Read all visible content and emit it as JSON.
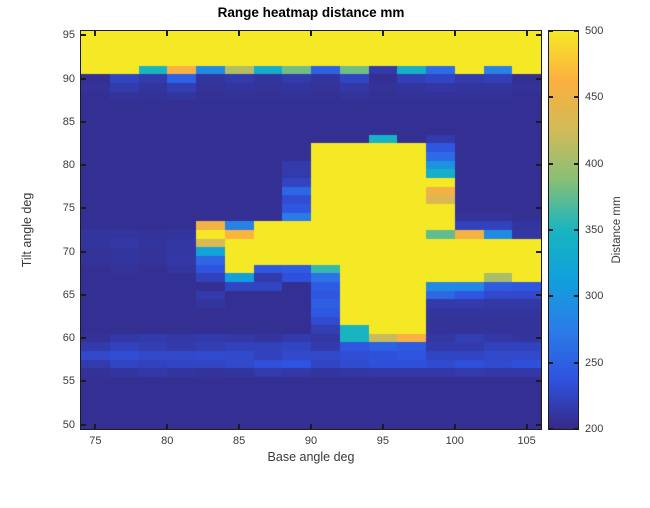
{
  "title": "Range heatmap distance mm",
  "x_axis": {
    "label": "Base angle deg",
    "ticks": [
      75,
      80,
      85,
      90,
      95,
      100,
      105
    ]
  },
  "y_axis": {
    "label": "Tilt angle deg",
    "ticks": [
      50,
      55,
      60,
      65,
      70,
      75,
      80,
      85,
      90,
      95
    ]
  },
  "colorbar": {
    "label": "Distance mm",
    "ticks": [
      200,
      250,
      300,
      350,
      400,
      450,
      500
    ],
    "min": 200,
    "max": 500
  },
  "palette": {
    "name": "parula",
    "background": "#ffffff",
    "axis_color": "#1c1c1c",
    "label_color": "#3a3a3a",
    "anchors": [
      [
        0.0,
        "#352a87"
      ],
      [
        0.125,
        "#2f53e1"
      ],
      [
        0.25,
        "#2b7de8"
      ],
      [
        0.375,
        "#11a0dc"
      ],
      [
        0.5,
        "#18b5c0"
      ],
      [
        0.625,
        "#87bf77"
      ],
      [
        0.75,
        "#d1bb59"
      ],
      [
        0.875,
        "#fbb040"
      ],
      [
        1.0,
        "#f5e926"
      ]
    ]
  },
  "chart_data": {
    "type": "heatmap",
    "title": "Range heatmap distance mm",
    "xlabel": "Base angle deg",
    "ylabel": "Tilt angle deg",
    "colorbar_label": "Distance mm",
    "colormap": "parula",
    "x_range": [
      74,
      106
    ],
    "y_range": [
      49.5,
      95.5
    ],
    "color_range": [
      200,
      500
    ],
    "x_centers": [
      75,
      77,
      79,
      81,
      83,
      85,
      87,
      89,
      91,
      93,
      95,
      97,
      99,
      101,
      103,
      105
    ],
    "y_centers_top_to_bottom": [
      95,
      94,
      93,
      92,
      91,
      90,
      89,
      88,
      87,
      86,
      85,
      84,
      83,
      82,
      81,
      80,
      79,
      78,
      77,
      76,
      75,
      74,
      73,
      72,
      71,
      70,
      69,
      68,
      67,
      66,
      65,
      64,
      63,
      62,
      61,
      60,
      59,
      58,
      57,
      56,
      55,
      54,
      53,
      52,
      51,
      50
    ],
    "values": [
      [
        500,
        500,
        500,
        500,
        500,
        500,
        500,
        500,
        500,
        500,
        500,
        500,
        500,
        500,
        500,
        500
      ],
      [
        500,
        500,
        500,
        500,
        500,
        500,
        500,
        500,
        500,
        500,
        500,
        500,
        500,
        500,
        500,
        500
      ],
      [
        500,
        500,
        500,
        500,
        500,
        500,
        500,
        500,
        500,
        500,
        500,
        500,
        500,
        500,
        500,
        500
      ],
      [
        500,
        500,
        500,
        500,
        500,
        500,
        500,
        500,
        500,
        500,
        500,
        500,
        500,
        500,
        500,
        500
      ],
      [
        500,
        500,
        350,
        460,
        290,
        410,
        335,
        380,
        250,
        380,
        215,
        340,
        260,
        500,
        280,
        500
      ],
      [
        205,
        225,
        215,
        250,
        210,
        215,
        210,
        215,
        210,
        225,
        205,
        220,
        225,
        215,
        220,
        205
      ],
      [
        207,
        215,
        210,
        218,
        208,
        210,
        208,
        210,
        208,
        213,
        207,
        210,
        212,
        210,
        210,
        207
      ],
      [
        205,
        208,
        207,
        210,
        206,
        207,
        206,
        207,
        206,
        208,
        206,
        207,
        207,
        207,
        207,
        205
      ],
      [
        205,
        205,
        205,
        205,
        205,
        205,
        205,
        205,
        205,
        205,
        205,
        205,
        205,
        205,
        205,
        205
      ],
      [
        205,
        205,
        205,
        205,
        205,
        205,
        205,
        205,
        205,
        205,
        205,
        205,
        205,
        205,
        205,
        205
      ],
      [
        205,
        205,
        205,
        205,
        205,
        205,
        205,
        205,
        205,
        205,
        205,
        205,
        205,
        205,
        205,
        205
      ],
      [
        205,
        205,
        205,
        205,
        205,
        205,
        205,
        205,
        205,
        205,
        205,
        205,
        205,
        205,
        205,
        205
      ],
      [
        205,
        205,
        205,
        205,
        205,
        205,
        205,
        205,
        205,
        205,
        345,
        205,
        215,
        205,
        205,
        205
      ],
      [
        205,
        205,
        205,
        205,
        205,
        205,
        205,
        205,
        500,
        500,
        500,
        500,
        240,
        205,
        205,
        205
      ],
      [
        205,
        205,
        205,
        205,
        205,
        205,
        205,
        205,
        500,
        500,
        500,
        500,
        258,
        205,
        205,
        205
      ],
      [
        205,
        205,
        205,
        205,
        205,
        205,
        205,
        215,
        500,
        500,
        500,
        500,
        300,
        205,
        205,
        205
      ],
      [
        205,
        205,
        205,
        205,
        205,
        205,
        205,
        215,
        500,
        500,
        500,
        500,
        340,
        205,
        205,
        205
      ],
      [
        205,
        205,
        205,
        205,
        205,
        205,
        205,
        225,
        500,
        500,
        500,
        500,
        500,
        205,
        205,
        205
      ],
      [
        205,
        205,
        205,
        205,
        205,
        205,
        205,
        255,
        500,
        500,
        500,
        500,
        455,
        205,
        205,
        205
      ],
      [
        205,
        205,
        205,
        205,
        205,
        205,
        205,
        232,
        500,
        500,
        500,
        500,
        435,
        205,
        205,
        205
      ],
      [
        205,
        205,
        205,
        205,
        205,
        205,
        205,
        240,
        500,
        500,
        500,
        500,
        500,
        205,
        205,
        205
      ],
      [
        205,
        205,
        205,
        205,
        205,
        205,
        205,
        272,
        500,
        500,
        500,
        500,
        500,
        208,
        208,
        205
      ],
      [
        205,
        205,
        205,
        205,
        455,
        280,
        500,
        500,
        500,
        500,
        500,
        500,
        500,
        222,
        222,
        210
      ],
      [
        210,
        210,
        208,
        210,
        500,
        465,
        500,
        500,
        500,
        500,
        500,
        500,
        375,
        455,
        290,
        212
      ],
      [
        210,
        213,
        210,
        212,
        430,
        500,
        500,
        500,
        500,
        500,
        500,
        500,
        500,
        500,
        500,
        500
      ],
      [
        208,
        210,
        208,
        212,
        320,
        500,
        500,
        500,
        500,
        500,
        500,
        500,
        500,
        500,
        500,
        500
      ],
      [
        208,
        210,
        208,
        213,
        255,
        500,
        500,
        500,
        500,
        500,
        500,
        500,
        500,
        500,
        500,
        500
      ],
      [
        205,
        208,
        205,
        210,
        238,
        500,
        240,
        245,
        360,
        500,
        500,
        500,
        500,
        500,
        500,
        500
      ],
      [
        205,
        205,
        205,
        205,
        222,
        310,
        215,
        235,
        265,
        500,
        500,
        500,
        500,
        500,
        405,
        500
      ],
      [
        205,
        205,
        205,
        205,
        205,
        225,
        225,
        205,
        245,
        500,
        500,
        500,
        290,
        285,
        245,
        240
      ],
      [
        205,
        205,
        205,
        205,
        215,
        205,
        205,
        205,
        240,
        500,
        500,
        500,
        255,
        240,
        228,
        228
      ],
      [
        205,
        205,
        205,
        205,
        210,
        205,
        205,
        205,
        248,
        500,
        500,
        500,
        215,
        215,
        213,
        213
      ],
      [
        205,
        205,
        205,
        205,
        205,
        205,
        205,
        205,
        242,
        500,
        500,
        500,
        210,
        210,
        210,
        210
      ],
      [
        205,
        205,
        205,
        205,
        205,
        205,
        205,
        205,
        230,
        500,
        500,
        500,
        208,
        208,
        208,
        208
      ],
      [
        205,
        205,
        205,
        205,
        205,
        205,
        205,
        205,
        218,
        350,
        500,
        500,
        208,
        208,
        208,
        208
      ],
      [
        207,
        213,
        215,
        213,
        215,
        213,
        210,
        215,
        212,
        350,
        420,
        460,
        212,
        218,
        213,
        210
      ],
      [
        215,
        222,
        218,
        215,
        218,
        222,
        222,
        225,
        215,
        240,
        250,
        245,
        215,
        215,
        222,
        222
      ],
      [
        228,
        232,
        228,
        228,
        230,
        228,
        222,
        228,
        228,
        232,
        235,
        238,
        225,
        225,
        228,
        228
      ],
      [
        215,
        225,
        222,
        225,
        225,
        228,
        235,
        238,
        225,
        230,
        235,
        235,
        230,
        235,
        230,
        235
      ],
      [
        207,
        210,
        213,
        210,
        208,
        210,
        215,
        213,
        210,
        212,
        213,
        213,
        213,
        215,
        213,
        213
      ],
      [
        205,
        205,
        205,
        205,
        205,
        205,
        205,
        205,
        205,
        205,
        205,
        205,
        205,
        205,
        205,
        205
      ],
      [
        205,
        205,
        205,
        205,
        205,
        205,
        205,
        205,
        205,
        205,
        205,
        205,
        205,
        205,
        205,
        205
      ],
      [
        205,
        205,
        205,
        205,
        205,
        205,
        205,
        205,
        205,
        205,
        205,
        205,
        205,
        205,
        205,
        205
      ],
      [
        205,
        205,
        205,
        205,
        205,
        205,
        205,
        205,
        205,
        205,
        205,
        205,
        205,
        205,
        205,
        205
      ],
      [
        205,
        205,
        205,
        205,
        205,
        205,
        205,
        205,
        205,
        205,
        205,
        205,
        205,
        205,
        205,
        205
      ],
      [
        205,
        205,
        205,
        205,
        205,
        205,
        205,
        205,
        205,
        205,
        205,
        205,
        205,
        205,
        205,
        205
      ]
    ]
  }
}
